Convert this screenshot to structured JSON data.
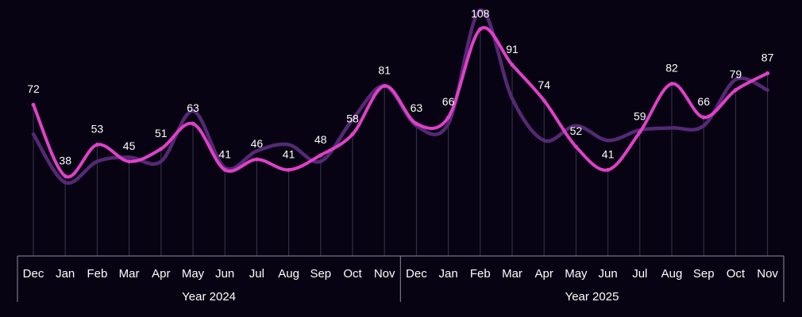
{
  "chart_data": {
    "type": "line",
    "categories": [
      "Dec",
      "Jan",
      "Feb",
      "Mar",
      "Apr",
      "May",
      "Jun",
      "Jul",
      "Aug",
      "Sep",
      "Oct",
      "Nov",
      "Dec",
      "Jan",
      "Feb",
      "Mar",
      "Apr",
      "May",
      "Jun",
      "Jul",
      "Aug",
      "Sep",
      "Oct",
      "Nov"
    ],
    "groups": [
      {
        "label": "Year 2024",
        "start": 0,
        "end": 11
      },
      {
        "label": "Year 2025",
        "start": 12,
        "end": 23
      }
    ],
    "series": [
      {
        "values": [
          72,
          38,
          53,
          45,
          51,
          63,
          41,
          46,
          41,
          48,
          58,
          81,
          63,
          66,
          108,
          91,
          74,
          52,
          41,
          59,
          82,
          66,
          79,
          87
        ],
        "color": "#e040c8",
        "labeled": true
      },
      {
        "values": [
          58,
          35,
          45,
          47,
          45,
          69,
          42,
          50,
          53,
          45,
          65,
          81,
          62,
          63,
          117,
          75,
          55,
          62,
          55,
          60,
          61,
          62,
          84,
          79
        ],
        "color": "#5a2a7a",
        "labeled": false
      }
    ],
    "ylim": [
      0,
      120
    ],
    "grid": false,
    "legend": "none"
  }
}
